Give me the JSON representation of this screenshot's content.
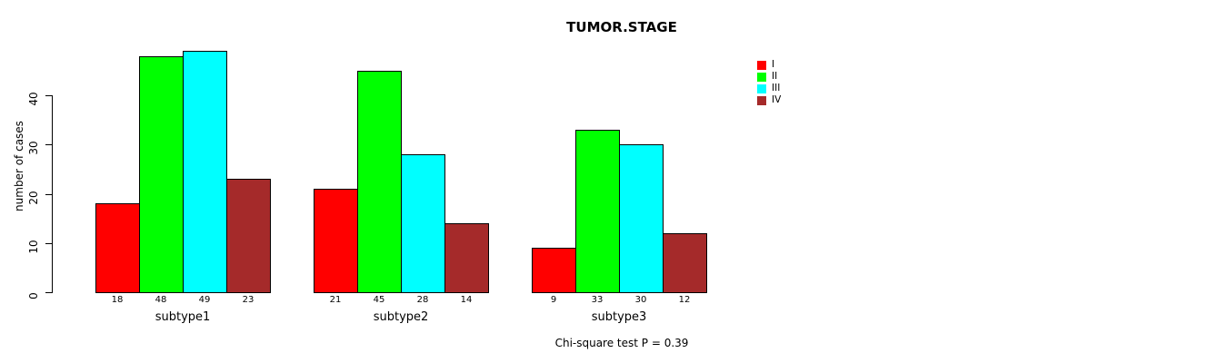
{
  "title": "TUMOR.STAGE",
  "ylabel": "number of cases",
  "note": "Chi-square test P = 0.39",
  "chart_data": {
    "type": "bar",
    "title": "TUMOR.STAGE",
    "xlabel": "",
    "ylabel": "number of cases",
    "categories": [
      "subtype1",
      "subtype2",
      "subtype3"
    ],
    "series": [
      {
        "name": "I",
        "color": "#ff0000",
        "values": [
          18,
          21,
          9
        ]
      },
      {
        "name": "II",
        "color": "#00ff00",
        "values": [
          48,
          45,
          33
        ]
      },
      {
        "name": "III",
        "color": "#00ffff",
        "values": [
          49,
          28,
          30
        ]
      },
      {
        "name": "IV",
        "color": "#a52a2a",
        "values": [
          23,
          14,
          12
        ]
      }
    ],
    "yticks": [
      0,
      10,
      20,
      30,
      40
    ],
    "ylim": [
      0,
      49
    ],
    "grid": false,
    "legend_position": "top-right",
    "bar_value_labels_shown": true,
    "annotation": "Chi-square test P = 0.39"
  }
}
